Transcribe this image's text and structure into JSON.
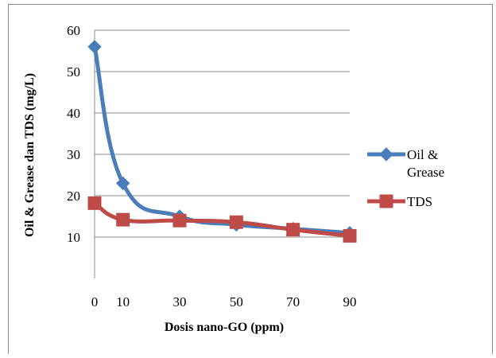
{
  "chart_data": {
    "type": "line",
    "x": [
      0,
      10,
      30,
      50,
      70,
      90
    ],
    "x_tick_labels": [
      "0",
      "10",
      "30",
      "50",
      "70",
      "90"
    ],
    "y_ticks": [
      10,
      20,
      30,
      40,
      50,
      60
    ],
    "y_tick_labels": [
      "10",
      "20",
      "30",
      "40",
      "50",
      "60"
    ],
    "ylim": [
      0,
      60
    ],
    "xlim": [
      0,
      90
    ],
    "xlabel": "Dosis nano-GO (ppm)",
    "ylabel": "Oil & Grease  dan TDS (mg/L)",
    "grid": "horizontal",
    "legend_position": "right",
    "series": [
      {
        "name": "Oil & Grease",
        "legend_lines": [
          "Oil &",
          "Grease"
        ],
        "marker": "diamond",
        "color": "#4a7ebb",
        "values": [
          56,
          23,
          15,
          13,
          12,
          11
        ]
      },
      {
        "name": "TDS",
        "legend_lines": [
          "TDS"
        ],
        "marker": "square",
        "color": "#be4b48",
        "values": [
          18.2,
          14.2,
          14,
          13.6,
          11.8,
          10.3
        ]
      }
    ]
  }
}
